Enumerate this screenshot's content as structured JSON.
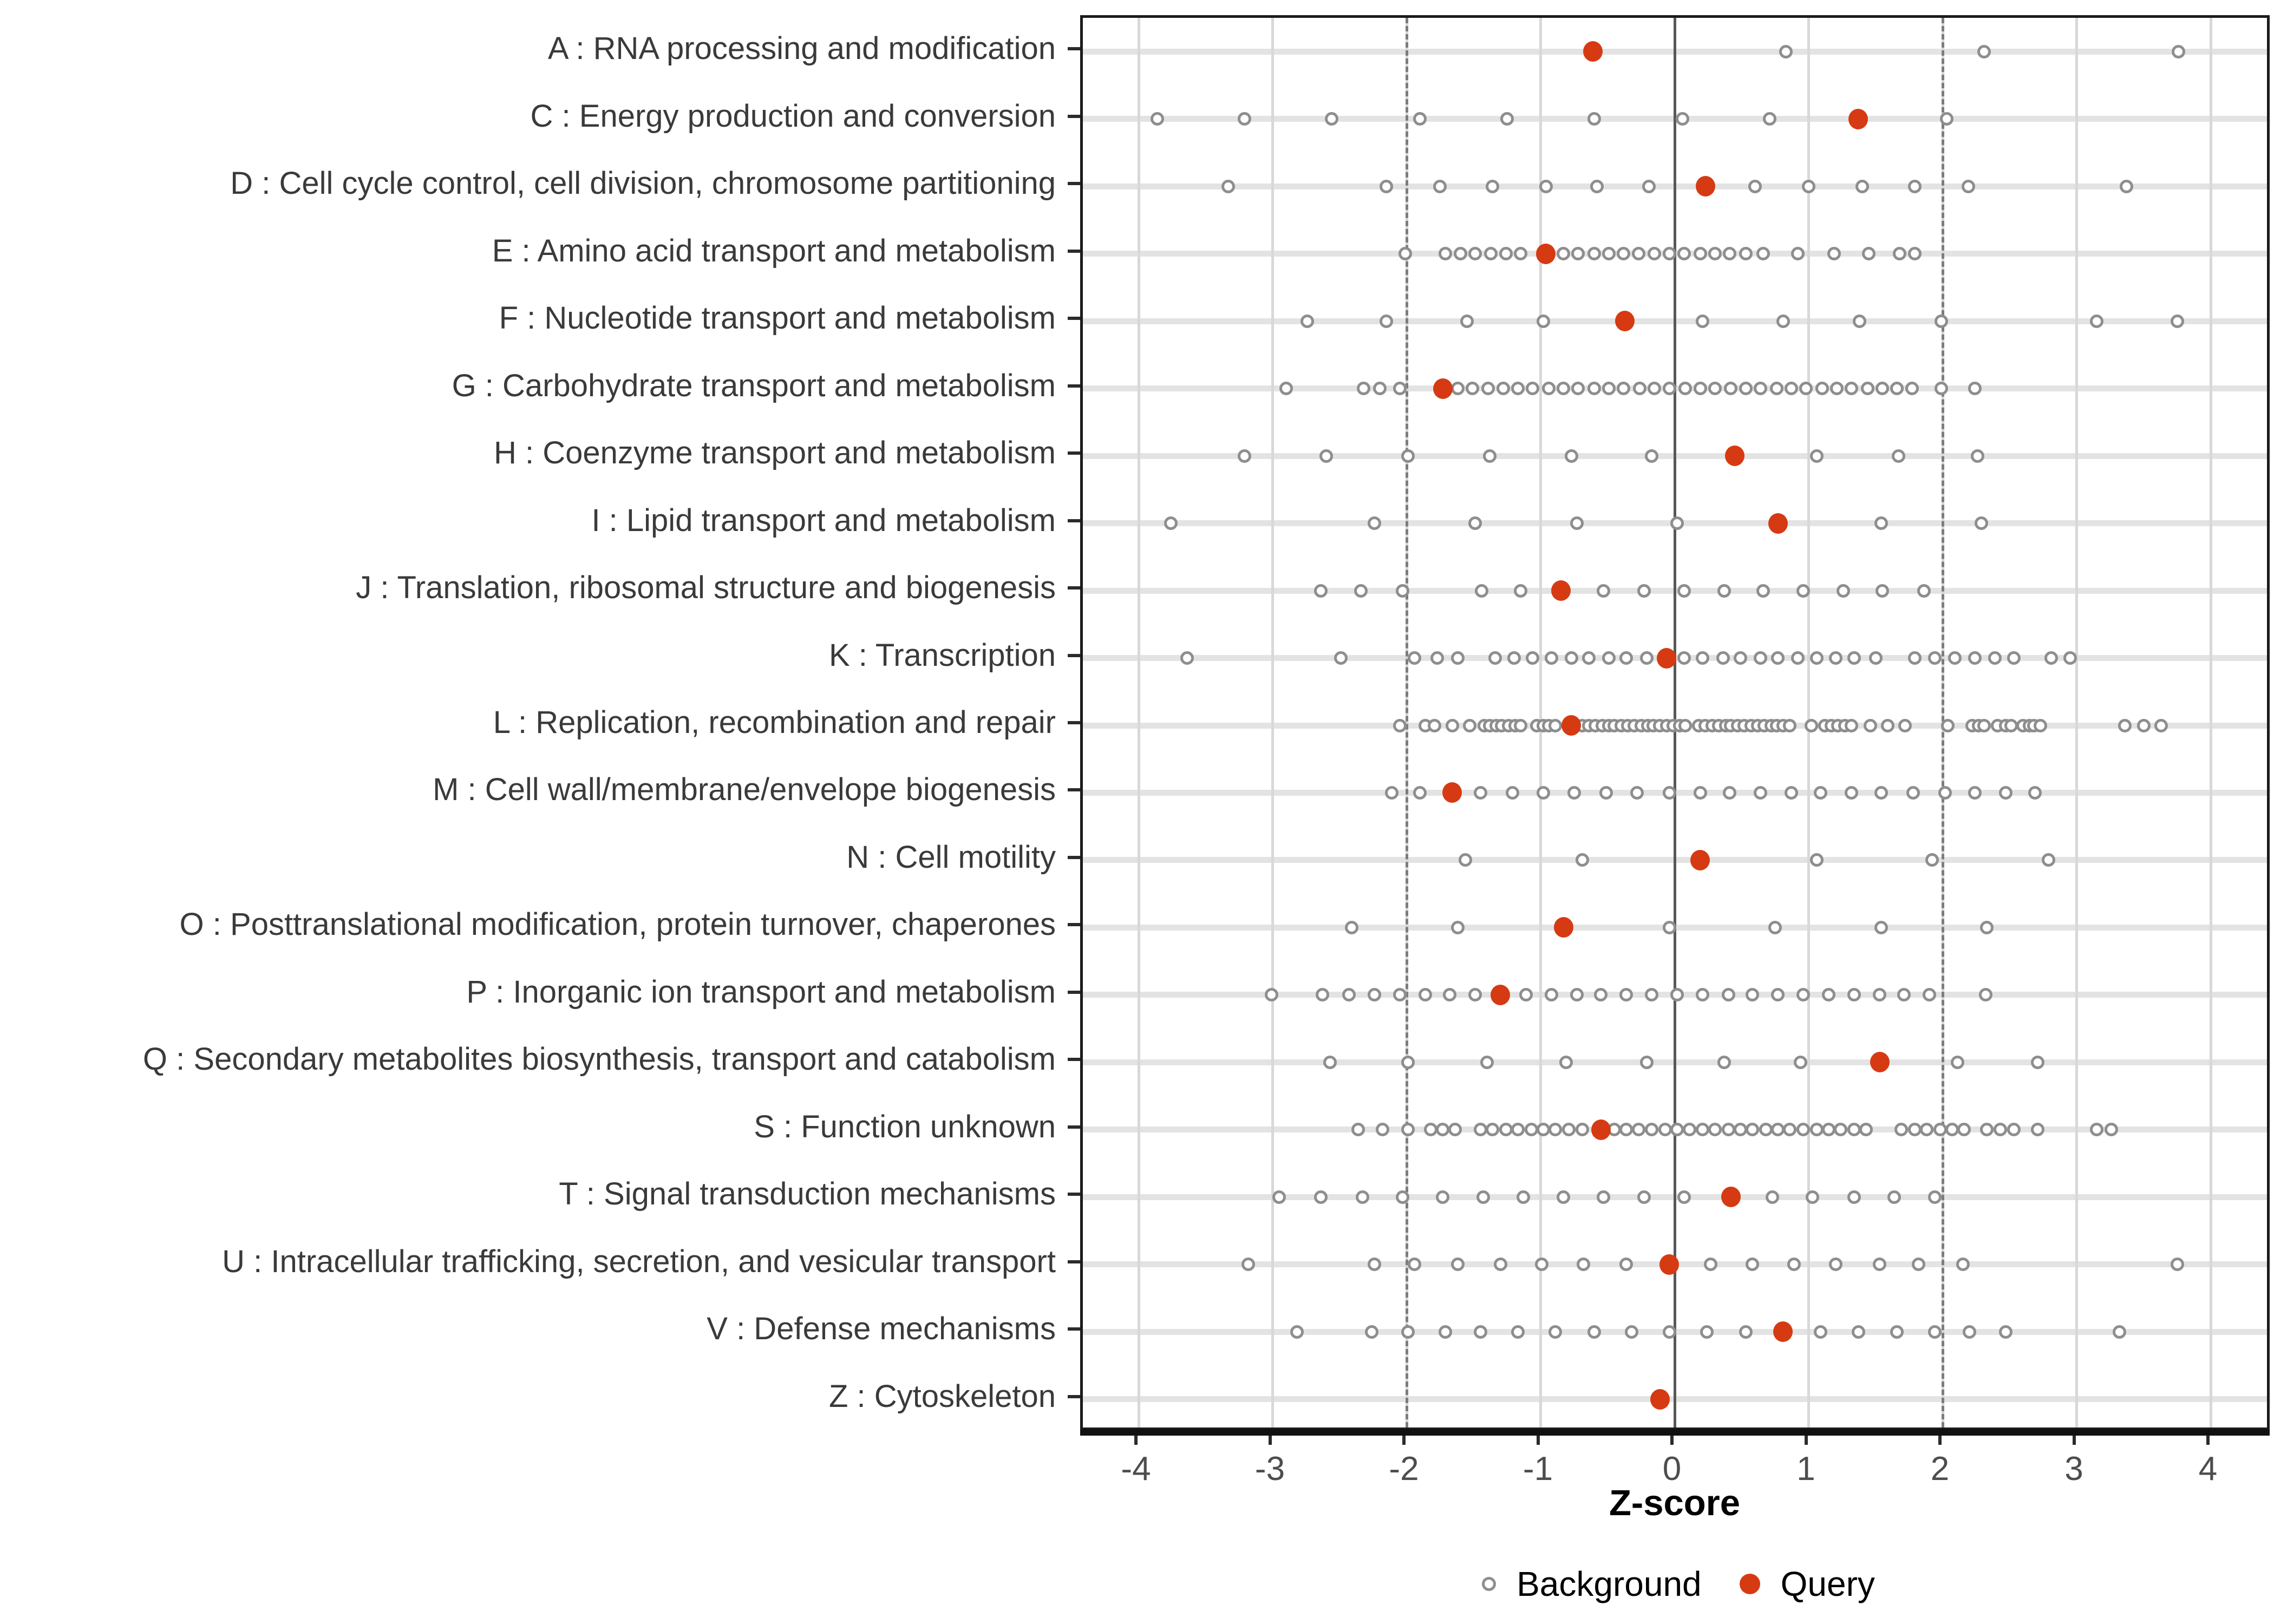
{
  "chart_data": {
    "type": "scatter",
    "title": "",
    "xlabel": "Z-score",
    "ylabel": "",
    "xlim": [
      -4.42,
      4.46
    ],
    "x_ticks": [
      "-4",
      "-3",
      "-2",
      "-1",
      "0",
      "1",
      "2",
      "3",
      "4"
    ],
    "x_tick_values": [
      -4,
      -3,
      -2,
      -1,
      0,
      1,
      2,
      3,
      4
    ],
    "grid": "vertical-major",
    "reference_lines": {
      "solid_zero": 0,
      "dashed": [
        -2,
        2
      ]
    },
    "legend_position": "bottom-center",
    "legend": [
      {
        "label": "Background",
        "marker": "open-circle",
        "color": "#8E8E8E"
      },
      {
        "label": "Query",
        "marker": "filled-circle",
        "color": "#D63A12"
      }
    ],
    "series": [
      {
        "name": "Background",
        "type": "open-circle"
      },
      {
        "name": "Query",
        "type": "filled-circle"
      }
    ],
    "categories": [
      {
        "label": "A : RNA processing and modification",
        "background": [
          0.83,
          2.31,
          3.76
        ],
        "query": -0.61
      },
      {
        "label": "C : Energy production and conversion",
        "background": [
          -3.86,
          -3.21,
          -2.56,
          -1.9,
          -1.25,
          -0.6,
          0.06,
          0.71,
          2.03
        ],
        "query": 1.37
      },
      {
        "label": "D : Cell cycle control, cell division, chromosome partitioning",
        "background": [
          -3.33,
          -2.15,
          -1.75,
          -1.36,
          -0.96,
          -0.58,
          -0.19,
          0.6,
          1.0,
          1.4,
          1.79,
          2.19,
          3.37
        ],
        "query": 0.23
      },
      {
        "label": "E : Amino acid transport and metabolism",
        "background": [
          -2.01,
          -1.71,
          -1.6,
          -1.49,
          -1.37,
          -1.26,
          -1.15,
          -0.83,
          -0.72,
          -0.6,
          -0.49,
          -0.38,
          -0.27,
          -0.15,
          -0.04,
          0.07,
          0.19,
          0.3,
          0.41,
          0.53,
          0.66,
          0.92,
          1.19,
          1.45,
          1.68,
          1.79
        ],
        "query": -0.96
      },
      {
        "label": "F : Nucleotide transport and metabolism",
        "background": [
          -2.74,
          -2.15,
          -1.55,
          -0.98,
          0.21,
          0.81,
          1.38,
          1.99,
          3.15,
          3.75
        ],
        "query": -0.37
      },
      {
        "label": "G : Carbohydrate transport and metabolism",
        "background": [
          -2.9,
          -2.32,
          -2.2,
          -2.05,
          -1.62,
          -1.51,
          -1.39,
          -1.28,
          -1.17,
          -1.06,
          -0.94,
          -0.83,
          -0.72,
          -0.6,
          -0.49,
          -0.38,
          -0.26,
          -0.15,
          -0.04,
          0.08,
          0.19,
          0.3,
          0.42,
          0.53,
          0.64,
          0.76,
          0.87,
          0.98,
          1.1,
          1.21,
          1.32,
          1.44,
          1.55,
          1.66,
          1.77,
          1.99,
          2.24
        ],
        "query": -1.73
      },
      {
        "label": "H : Coenzyme transport and metabolism",
        "background": [
          -3.21,
          -2.6,
          -1.99,
          -1.38,
          -0.77,
          -0.17,
          1.06,
          1.67,
          2.26
        ],
        "query": 0.45
      },
      {
        "label": "I : Lipid transport and metabolism",
        "background": [
          -3.76,
          -2.24,
          -1.49,
          -0.73,
          0.02,
          1.54,
          2.29
        ],
        "query": 0.77
      },
      {
        "label": "J : Translation, ribosomal structure and biogenesis",
        "background": [
          -2.64,
          -2.34,
          -2.03,
          -1.44,
          -1.15,
          -0.53,
          -0.23,
          0.07,
          0.37,
          0.66,
          0.96,
          1.26,
          1.55,
          1.86
        ],
        "query": -0.85
      },
      {
        "label": "K : Transcription",
        "background": [
          -3.64,
          -2.49,
          -1.94,
          -1.77,
          -1.62,
          -1.34,
          -1.2,
          -1.06,
          -0.92,
          -0.77,
          -0.64,
          -0.49,
          -0.36,
          -0.21,
          0.07,
          0.21,
          0.36,
          0.49,
          0.64,
          0.77,
          0.92,
          1.06,
          1.2,
          1.34,
          1.5,
          1.79,
          1.94,
          2.09,
          2.24,
          2.39,
          2.53,
          2.81,
          2.95
        ],
        "query": -0.06
      },
      {
        "label": "L : Replication, recombination and repair",
        "background": [
          -2.05,
          -1.86,
          -1.79,
          -1.66,
          -1.53,
          -1.42,
          -1.38,
          -1.33,
          -1.29,
          -1.24,
          -1.19,
          -1.15,
          -1.03,
          -0.98,
          -0.94,
          -0.89,
          -0.69,
          -0.64,
          -0.59,
          -0.54,
          -0.49,
          -0.45,
          -0.4,
          -0.35,
          -0.3,
          -0.25,
          -0.2,
          -0.16,
          -0.11,
          -0.06,
          -0.01,
          0.04,
          0.08,
          0.18,
          0.23,
          0.28,
          0.33,
          0.38,
          0.42,
          0.47,
          0.52,
          0.57,
          0.62,
          0.67,
          0.72,
          0.76,
          0.81,
          0.86,
          1.02,
          1.12,
          1.17,
          1.22,
          1.27,
          1.32,
          1.46,
          1.59,
          1.72,
          2.04,
          2.22,
          2.27,
          2.31,
          2.41,
          2.47,
          2.51,
          2.6,
          2.65,
          2.68,
          2.73,
          3.36,
          3.5,
          3.63
        ],
        "query": -0.77
      },
      {
        "label": "M : Cell wall/membrane/envelope biogenesis",
        "background": [
          -2.11,
          -1.9,
          -1.45,
          -1.21,
          -0.98,
          -0.75,
          -0.51,
          -0.28,
          -0.04,
          0.19,
          0.41,
          0.64,
          0.87,
          1.09,
          1.32,
          1.54,
          1.78,
          2.02,
          2.24,
          2.47,
          2.69
        ],
        "query": -1.66
      },
      {
        "label": "N : Cell motility",
        "background": [
          -1.56,
          -0.69,
          1.06,
          1.92,
          2.79
        ],
        "query": 0.19
      },
      {
        "label": "O : Posttranslational modification, protein turnover, chaperones",
        "background": [
          -2.41,
          -1.62,
          -0.04,
          0.75,
          1.54,
          2.33
        ],
        "query": -0.83
      },
      {
        "label": "P : Inorganic ion transport and metabolism",
        "background": [
          -3.01,
          -2.63,
          -2.43,
          -2.24,
          -2.05,
          -1.86,
          -1.68,
          -1.49,
          -1.11,
          -0.92,
          -0.73,
          -0.55,
          -0.36,
          -0.17,
          0.02,
          0.21,
          0.4,
          0.58,
          0.77,
          0.96,
          1.15,
          1.34,
          1.53,
          1.71,
          1.9,
          2.32
        ],
        "query": -1.3
      },
      {
        "label": "Q : Secondary metabolites biosynthesis, transport and catabolism",
        "background": [
          -2.57,
          -1.99,
          -1.4,
          -0.81,
          -0.21,
          0.37,
          0.94,
          2.11,
          2.71
        ],
        "query": 1.53
      },
      {
        "label": "S : Function unknown",
        "background": [
          -2.36,
          -2.18,
          -1.99,
          -1.82,
          -1.73,
          -1.64,
          -1.45,
          -1.36,
          -1.26,
          -1.17,
          -1.07,
          -0.98,
          -0.89,
          -0.79,
          -0.69,
          -0.45,
          -0.36,
          -0.27,
          -0.17,
          -0.07,
          0.02,
          0.11,
          0.21,
          0.3,
          0.4,
          0.49,
          0.58,
          0.68,
          0.77,
          0.86,
          0.96,
          1.06,
          1.15,
          1.24,
          1.34,
          1.43,
          1.69,
          1.79,
          1.88,
          1.98,
          2.07,
          2.16,
          2.33,
          2.43,
          2.53,
          2.71,
          3.15,
          3.26
        ],
        "query": -0.55
      },
      {
        "label": "T : Signal transduction mechanisms",
        "background": [
          -2.95,
          -2.64,
          -2.33,
          -2.03,
          -1.73,
          -1.43,
          -1.13,
          -0.83,
          -0.53,
          -0.23,
          0.07,
          0.73,
          1.03,
          1.34,
          1.64,
          1.94
        ],
        "query": 0.42
      },
      {
        "label": "U : Intracellular trafficking, secretion, and vesicular transport",
        "background": [
          -3.18,
          -2.24,
          -1.94,
          -1.62,
          -1.3,
          -0.99,
          -0.68,
          -0.36,
          0.27,
          0.58,
          0.89,
          1.2,
          1.53,
          1.82,
          2.15,
          3.75
        ],
        "query": -0.04
      },
      {
        "label": "V : Defense mechanisms",
        "background": [
          -2.82,
          -2.26,
          -1.99,
          -1.71,
          -1.45,
          -1.17,
          -0.89,
          -0.6,
          -0.32,
          -0.04,
          0.24,
          0.53,
          1.09,
          1.37,
          1.66,
          1.94,
          2.2,
          2.47,
          3.32
        ],
        "query": 0.81
      },
      {
        "label": "Z : Cytoskeleton",
        "background": [],
        "query": -0.11
      }
    ]
  },
  "colors": {
    "query": "#D63A12",
    "background_stroke": "#8E8E8E",
    "stripe": "#E3E3E3",
    "gridline": "#D8D8D8",
    "zero_line": "#585858",
    "threshold_line": "#7D7D7D",
    "axis_text": "#4D4D4D",
    "label_text": "#3A3A3A",
    "panel_border": "#1b1b1b"
  }
}
